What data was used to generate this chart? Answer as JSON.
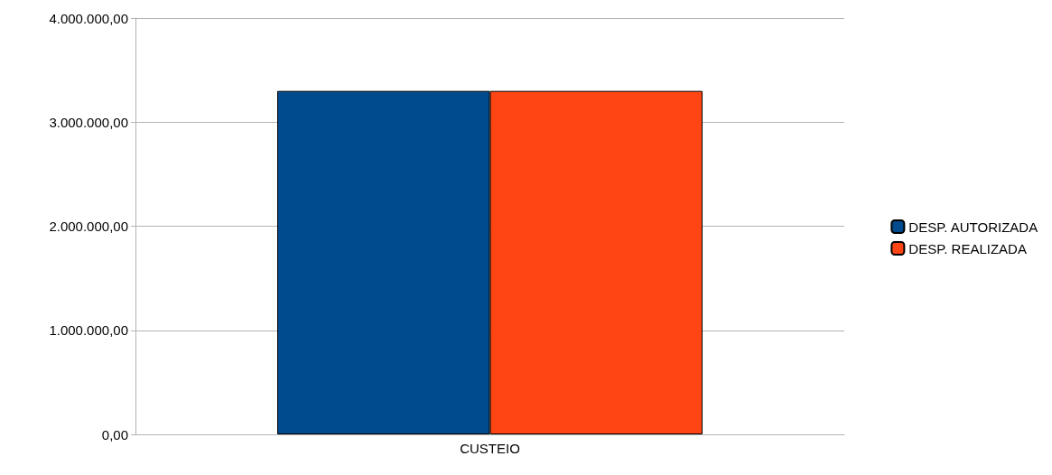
{
  "chart_data": {
    "type": "bar",
    "categories": [
      "CUSTEIO"
    ],
    "series": [
      {
        "name": "DESP. AUTORIZADA",
        "color": "#004b8d",
        "values": [
          3300000
        ]
      },
      {
        "name": "DESP. REALIZADA",
        "color": "#ff4513",
        "values": [
          3300000
        ]
      }
    ],
    "ylim": [
      0,
      4000000
    ],
    "yticks": [
      {
        "value": 0,
        "label": "0,00"
      },
      {
        "value": 1000000,
        "label": "1.000.000,00"
      },
      {
        "value": 2000000,
        "label": "2.000.000,00"
      },
      {
        "value": 3000000,
        "label": "3.000.000,00"
      },
      {
        "value": 4000000,
        "label": "4.000.000,00"
      }
    ],
    "grid": true,
    "legend": "right"
  }
}
